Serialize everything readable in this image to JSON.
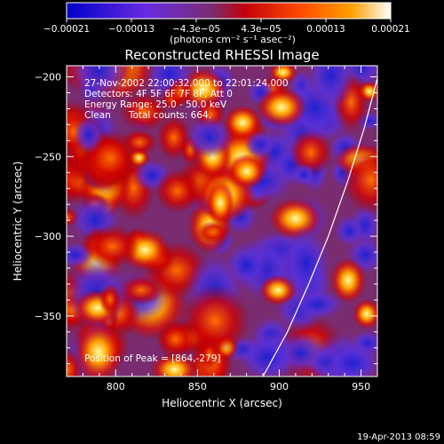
{
  "chart_data": {
    "type": "heatmap",
    "title": "Reconstructed RHESSI Image",
    "xlabel": "Heliocentric X (arcsec)",
    "ylabel": "Heliocentric Y (arcsec)",
    "xlim": [
      770,
      960
    ],
    "ylim": [
      -388,
      -193
    ],
    "x_ticks": [
      800,
      850,
      900,
      950
    ],
    "x_tick_labels": [
      "800",
      "850",
      "900",
      "950"
    ],
    "y_ticks": [
      -200,
      -250,
      -300,
      -350
    ],
    "y_tick_labels": [
      "−200",
      "−250",
      "−300",
      "−350"
    ],
    "colorbar": {
      "range": [
        -0.00021,
        0.00021
      ],
      "tick_labels": [
        "−0.00021",
        "−0.00013",
        "−4.3e−05",
        "4.3e−05",
        "0.00013",
        "0.00021"
      ],
      "unit_label": "(photons cm⁻² s⁻¹ asec⁻²)",
      "colors": [
        "#0000c8",
        "#6a2be0",
        "#7a2c70",
        "#c2000a",
        "#ff4a00",
        "#ffa000",
        "#ffffff"
      ]
    },
    "annotations": [
      "27-Nov-2002 22:00:32.000 to 22:01:24.000",
      "Detectors: 4F 5F 6F 7F 8F, Att 0",
      "Energy Range: 25.0 - 50.0 keV",
      "Clean      Total counts: 664.",
      "Position of Peak = [864,-279]"
    ],
    "peak": {
      "x": 864,
      "y": -279
    },
    "limb_curve": [
      [
        890,
        -388
      ],
      [
        905,
        -360
      ],
      [
        918,
        -330
      ],
      [
        930,
        -300
      ],
      [
        942,
        -265
      ],
      [
        952,
        -232
      ],
      [
        962,
        -193
      ]
    ]
  },
  "footer": {
    "timestamp": "19-Apr-2013 08:59"
  }
}
